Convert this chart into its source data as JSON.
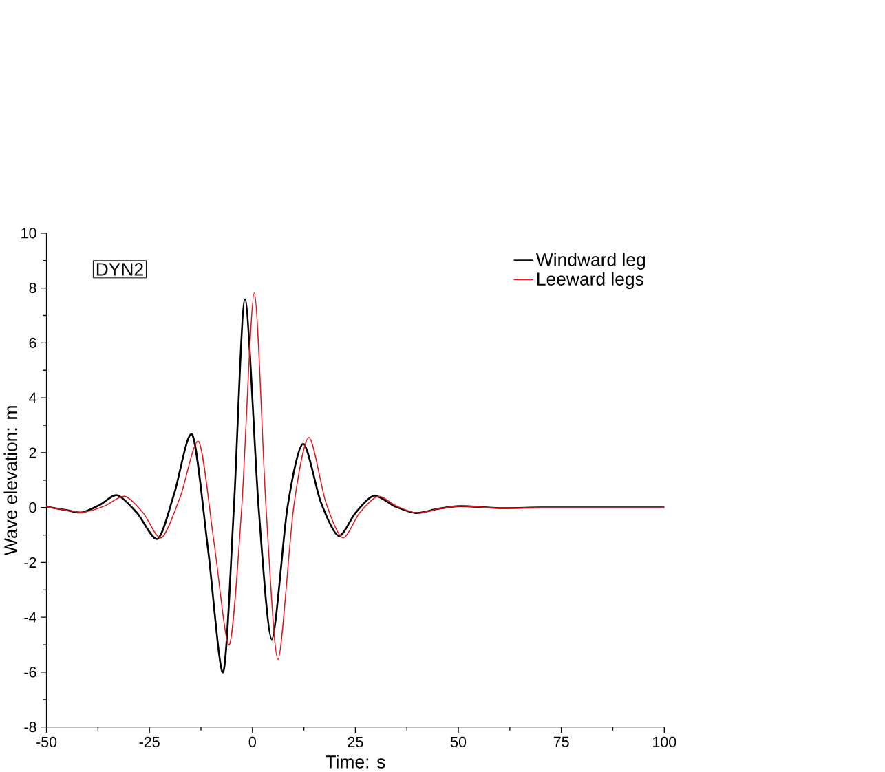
{
  "chart_data": {
    "type": "line",
    "xlabel": "Time: s",
    "ylabel": "Wave elevation: m",
    "annotations": [
      "DYN2"
    ],
    "xlim": [
      -50,
      100
    ],
    "ylim": [
      -8,
      10
    ],
    "xticks": [
      -50,
      -25,
      0,
      25,
      50,
      75,
      100
    ],
    "yticks": [
      -8,
      -6,
      -4,
      -2,
      0,
      2,
      4,
      6,
      8,
      10
    ],
    "grid": false,
    "legend": "top right",
    "marker": "none",
    "line_style": "solid",
    "series": [
      {
        "name": "Windward leg",
        "color": "#000000",
        "x": [
          -50,
          -45,
          -41.4,
          -37,
          -32.8,
          -28,
          -23,
          -19,
          -14.6,
          -10.8,
          -7.1,
          -4.5,
          -1.8,
          1.5,
          4.7,
          8.5,
          12.3,
          16.6,
          20.9,
          25,
          29.5,
          34.5,
          39.6,
          45,
          50.5,
          60,
          70,
          80,
          100
        ],
        "values": [
          0.03,
          -0.1,
          -0.18,
          0.1,
          0.45,
          -0.2,
          -1.14,
          0.5,
          2.65,
          -1.5,
          -6.0,
          0,
          7.59,
          0,
          -4.8,
          0,
          2.32,
          0.2,
          -1.03,
          -0.2,
          0.43,
          0.05,
          -0.2,
          -0.05,
          0.05,
          -0.02,
          0,
          0,
          0
        ]
      },
      {
        "name": "Leeward legs",
        "color": "#e8141c",
        "x": [
          -50,
          -45,
          -41,
          -36,
          -31,
          -26.5,
          -22.1,
          -17.5,
          -13,
          -9.3,
          -5.6,
          -2.6,
          0.45,
          3.3,
          6.2,
          10,
          13.7,
          17.8,
          21.9,
          26,
          30.5,
          35,
          40,
          45,
          50.5,
          60,
          70,
          80,
          100
        ],
        "values": [
          0.03,
          -0.1,
          -0.17,
          0.05,
          0.41,
          -0.2,
          -1.1,
          0.4,
          2.39,
          -1.3,
          -5.0,
          0,
          7.83,
          0,
          -5.54,
          0,
          2.55,
          0.2,
          -1.1,
          -0.2,
          0.41,
          0.05,
          -0.2,
          -0.05,
          0.05,
          -0.02,
          0,
          0,
          0
        ]
      }
    ]
  }
}
